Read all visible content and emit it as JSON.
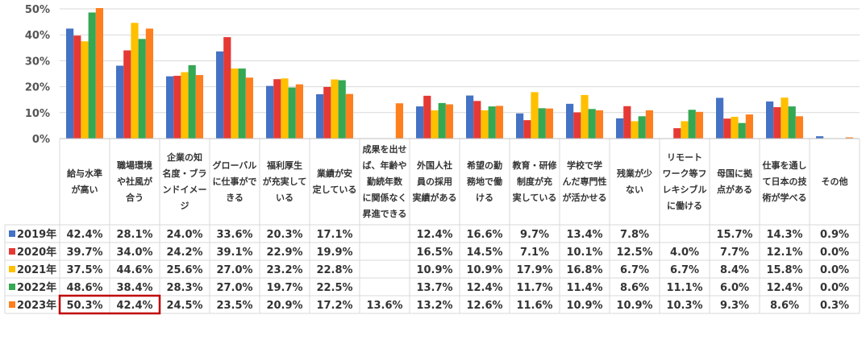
{
  "colors": {
    "2019年": "#4472C4",
    "2020年": "#E53935",
    "2021年": "#FFC000",
    "2022年": "#34A853",
    "2023年": "#FF7F1E",
    "highlight": "#C00000",
    "grid": "#D9D9D9"
  },
  "chart_data": {
    "type": "bar",
    "title": "",
    "xlabel": "",
    "ylabel": "",
    "ylim": [
      0,
      50
    ],
    "yticks": [
      "0%",
      "10%",
      "20%",
      "30%",
      "40%",
      "50%"
    ],
    "grid": true,
    "legend_position": "left (table rows)",
    "categories": [
      "給与水準\nが高い",
      "職場環境\nや社風が\n合う",
      "企業の知\n名度・ブラ\nンドイメー\nジ",
      "グローバル\nに仕事がで\nきる",
      "福利厚生\nが充実して\nいる",
      "業績が安\n定している",
      "成果を出せ\nば、年齢や\n勤続年数\nに関係なく\n昇進できる",
      "外国人社\n員の採用\n実績がある",
      "希望の勤\n務地で働\nける",
      "教育・研修\n制度が充\n実している",
      "学校で学\nんだ専門性\nが活かせる",
      "残業が少\nない",
      "リモート\nワーク等フ\nレキシブル\nに働ける",
      "母国に拠\n点がある",
      "仕事を通し\nて日本の技\n術が学べる",
      "その他"
    ],
    "series": [
      {
        "name": "2019年",
        "values": [
          42.4,
          28.1,
          24.0,
          33.6,
          20.3,
          17.1,
          null,
          12.4,
          16.6,
          9.7,
          13.4,
          7.8,
          null,
          15.7,
          14.3,
          0.9
        ],
        "labels": [
          "42.4%",
          "28.1%",
          "24.0%",
          "33.6%",
          "20.3%",
          "17.1%",
          "",
          "12.4%",
          "16.6%",
          "9.7%",
          "13.4%",
          "7.8%",
          "",
          "15.7%",
          "14.3%",
          "0.9%"
        ]
      },
      {
        "name": "2020年",
        "values": [
          39.7,
          34.0,
          24.2,
          39.1,
          22.9,
          19.9,
          null,
          16.5,
          14.5,
          7.1,
          10.1,
          12.5,
          4.0,
          7.7,
          12.1,
          0.0
        ],
        "labels": [
          "39.7%",
          "34.0%",
          "24.2%",
          "39.1%",
          "22.9%",
          "19.9%",
          "",
          "16.5%",
          "14.5%",
          "7.1%",
          "10.1%",
          "12.5%",
          "4.0%",
          "7.7%",
          "12.1%",
          "0.0%"
        ]
      },
      {
        "name": "2021年",
        "values": [
          37.5,
          44.6,
          25.6,
          27.0,
          23.2,
          22.8,
          null,
          10.9,
          10.9,
          17.9,
          16.8,
          6.7,
          6.7,
          8.4,
          15.8,
          0.0
        ],
        "labels": [
          "37.5%",
          "44.6%",
          "25.6%",
          "27.0%",
          "23.2%",
          "22.8%",
          "",
          "10.9%",
          "10.9%",
          "17.9%",
          "16.8%",
          "6.7%",
          "6.7%",
          "8.4%",
          "15.8%",
          "0.0%"
        ]
      },
      {
        "name": "2022年",
        "values": [
          48.6,
          38.4,
          28.3,
          27.0,
          19.7,
          22.5,
          null,
          13.7,
          12.4,
          11.7,
          11.4,
          8.6,
          11.1,
          6.0,
          12.4,
          0.0
        ],
        "labels": [
          "48.6%",
          "38.4%",
          "28.3%",
          "27.0%",
          "19.7%",
          "22.5%",
          "",
          "13.7%",
          "12.4%",
          "11.7%",
          "11.4%",
          "8.6%",
          "11.1%",
          "6.0%",
          "12.4%",
          "0.0%"
        ]
      },
      {
        "name": "2023年",
        "values": [
          50.3,
          42.4,
          24.5,
          23.5,
          20.9,
          17.2,
          13.6,
          13.2,
          12.6,
          11.6,
          10.9,
          10.9,
          10.3,
          9.3,
          8.6,
          0.3
        ],
        "labels": [
          "50.3%",
          "42.4%",
          "24.5%",
          "23.5%",
          "20.9%",
          "17.2%",
          "13.6%",
          "13.2%",
          "12.6%",
          "11.6%",
          "10.9%",
          "10.9%",
          "10.3%",
          "9.3%",
          "8.6%",
          "0.3%"
        ]
      }
    ],
    "highlighted_cells": [
      {
        "series": "2023年",
        "categories": [
          "給与水準\nが高い",
          "職場環境\nや社風が\n合う"
        ]
      }
    ]
  }
}
